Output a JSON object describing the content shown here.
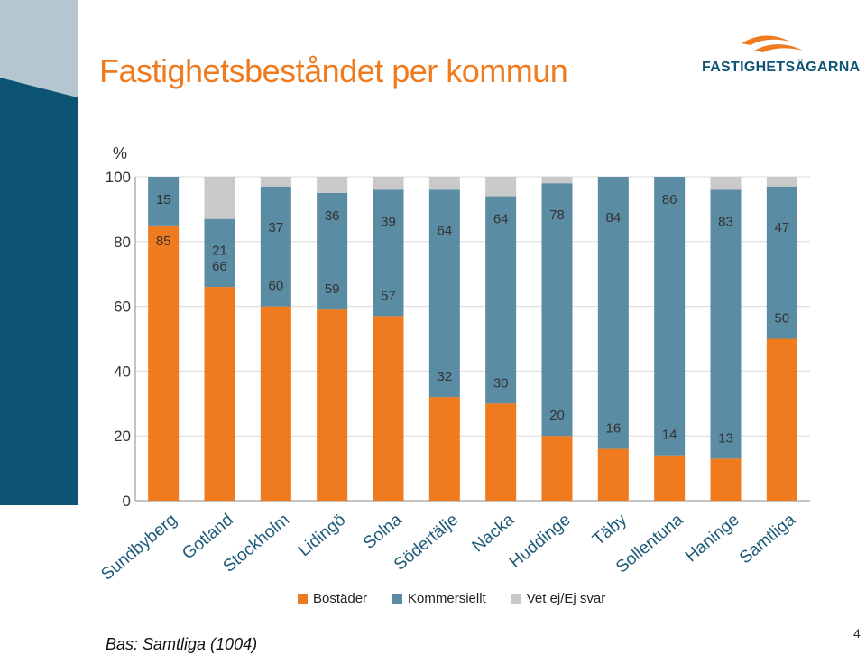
{
  "slide": {
    "title": "Fastighetsbeståndet per kommun",
    "footnote": "Bas: Samtliga (1004)",
    "page_number": "4",
    "logo_text": "FASTIGHETSÄGARNA"
  },
  "colors": {
    "residential": "#f07a1e",
    "commercial": "#5a8ca3",
    "unknown": "#c9c9c9",
    "title": "#f07a1e",
    "logo": "#0d5474"
  },
  "chart_data": {
    "type": "bar",
    "stacked": true,
    "y_unit": "%",
    "ylim": [
      0,
      100
    ],
    "yticks": [
      0,
      20,
      40,
      60,
      80,
      100
    ],
    "grid": true,
    "legend_position": "bottom",
    "categories": [
      "Sundbyberg",
      "Gotland",
      "Stockholm",
      "Lidingö",
      "Solna",
      "Södertälje",
      "Nacka",
      "Huddinge",
      "Täby",
      "Sollentuna",
      "Haninge",
      "Samtliga"
    ],
    "series": [
      {
        "name": "Bostäder",
        "color": "#f07a1e",
        "values": [
          85,
          66,
          60,
          59,
          57,
          32,
          30,
          20,
          16,
          14,
          13,
          50
        ],
        "labels": [
          "85",
          "66",
          "60",
          "59",
          "57",
          "32",
          "30",
          "20",
          "16",
          "14",
          "13",
          "50"
        ]
      },
      {
        "name": "Kommersiellt",
        "color": "#5a8ca3",
        "values": [
          15,
          21,
          37,
          36,
          39,
          64,
          64,
          78,
          84,
          86,
          83,
          47
        ],
        "labels": [
          "15",
          "21",
          "37",
          "36",
          "39",
          "64",
          "64",
          "78",
          "84",
          "86",
          "83",
          "47"
        ]
      },
      {
        "name": "Vet ej/Ej svar",
        "color": "#c9c9c9",
        "values": [
          0,
          13,
          3,
          5,
          4,
          4,
          6,
          2,
          0,
          0,
          4,
          3
        ],
        "labels": [
          "",
          "",
          "",
          "",
          "",
          "",
          "",
          "",
          "",
          "",
          "",
          ""
        ]
      }
    ]
  }
}
